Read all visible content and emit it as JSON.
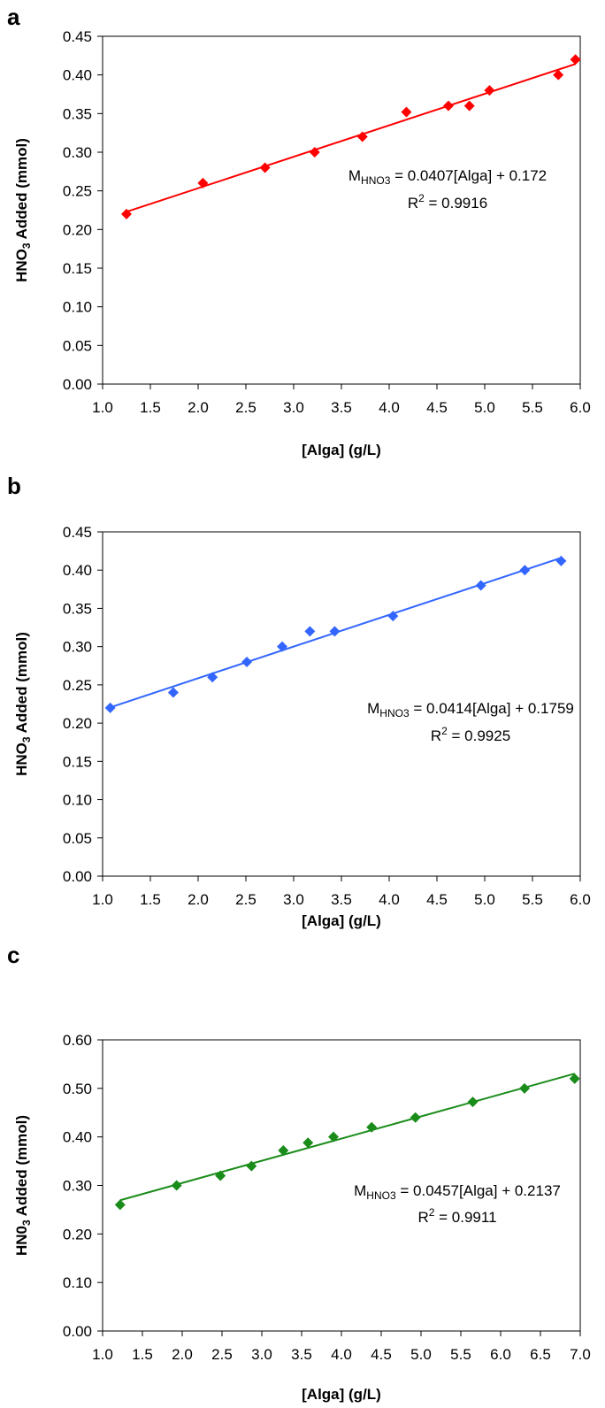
{
  "chart_data": [
    {
      "type": "scatter",
      "panel_label": "a",
      "xlabel": "[Alga] (g/L)",
      "ylabel_main": "HNO",
      "ylabel_sub": "3",
      "ylabel_rest": " Added (mmol)",
      "xlim": [
        1.0,
        6.0
      ],
      "ylim": [
        0.0,
        0.45
      ],
      "xticks": [
        "1.0",
        "1.5",
        "2.0",
        "2.5",
        "3.0",
        "3.5",
        "4.0",
        "4.5",
        "5.0",
        "5.5",
        "6.0"
      ],
      "yticks": [
        "0.00",
        "0.05",
        "0.10",
        "0.15",
        "0.20",
        "0.25",
        "0.30",
        "0.35",
        "0.40",
        "0.45"
      ],
      "color": "#ff0000",
      "series": [
        {
          "x": [
            1.25,
            2.05,
            2.7,
            3.22,
            3.72,
            4.18,
            4.62,
            4.84,
            5.05,
            5.77,
            5.95
          ],
          "y": [
            0.22,
            0.26,
            0.28,
            0.3,
            0.32,
            0.352,
            0.36,
            0.36,
            0.38,
            0.4,
            0.42
          ]
        }
      ],
      "trendline": {
        "slope": 0.0407,
        "intercept": 0.172,
        "x_range": [
          1.25,
          5.95
        ]
      },
      "equation_pre": "M",
      "equation_sub": "HNO3",
      "equation_post": " = 0.0407[Alga] + 0.172",
      "r2_pre": "R",
      "r2_sup": "2",
      "r2_post": " = 0.9916"
    },
    {
      "type": "scatter",
      "panel_label": "b",
      "xlabel": "[Alga] (g/L)",
      "ylabel_main": "HNO",
      "ylabel_sub": "3",
      "ylabel_rest": " Added (mmol)",
      "xlim": [
        1.0,
        6.0
      ],
      "ylim": [
        0.0,
        0.45
      ],
      "xticks": [
        "1.0",
        "1.5",
        "2.0",
        "2.5",
        "3.0",
        "3.5",
        "4.0",
        "4.5",
        "5.0",
        "5.5",
        "6.0"
      ],
      "yticks": [
        "0.00",
        "0.05",
        "0.10",
        "0.15",
        "0.20",
        "0.25",
        "0.30",
        "0.35",
        "0.40",
        "0.45"
      ],
      "color": "#3366ff",
      "series": [
        {
          "x": [
            1.08,
            1.74,
            2.15,
            2.51,
            2.88,
            3.17,
            3.43,
            4.04,
            4.96,
            5.42,
            5.8
          ],
          "y": [
            0.22,
            0.24,
            0.26,
            0.28,
            0.3,
            0.32,
            0.32,
            0.34,
            0.38,
            0.4,
            0.412
          ]
        }
      ],
      "trendline": {
        "slope": 0.0414,
        "intercept": 0.1759,
        "x_range": [
          1.08,
          5.8
        ]
      },
      "equation_pre": "M",
      "equation_sub": "HNO3",
      "equation_post": " = 0.0414[Alga] + 0.1759",
      "r2_pre": "R",
      "r2_sup": "2",
      "r2_post": " = 0.9925"
    },
    {
      "type": "scatter",
      "panel_label": "c",
      "xlabel": "[Alga] (g/L)",
      "ylabel_main": "HN0",
      "ylabel_sub": "3",
      "ylabel_rest": " Added (mmol)",
      "xlim": [
        1.0,
        7.0
      ],
      "ylim": [
        0.0,
        0.6
      ],
      "xticks": [
        "1.0",
        "1.5",
        "2.0",
        "2.5",
        "3.0",
        "3.5",
        "4.0",
        "4.5",
        "5.0",
        "5.5",
        "6.0",
        "6.5",
        "7.0"
      ],
      "yticks": [
        "0.00",
        "0.10",
        "0.20",
        "0.30",
        "0.40",
        "0.50",
        "0.60"
      ],
      "color": "#1a8c1a",
      "series": [
        {
          "x": [
            1.22,
            1.93,
            2.48,
            2.87,
            3.27,
            3.58,
            3.9,
            4.38,
            4.93,
            5.65,
            6.3,
            6.93
          ],
          "y": [
            0.26,
            0.3,
            0.32,
            0.34,
            0.372,
            0.388,
            0.4,
            0.42,
            0.44,
            0.472,
            0.5,
            0.52
          ]
        }
      ],
      "trendline": {
        "slope": 0.0457,
        "intercept": 0.2137,
        "x_range": [
          1.22,
          6.93
        ]
      },
      "equation_pre": "M",
      "equation_sub": "HNO3",
      "equation_post": " = 0.0457[Alga] + 0.2137",
      "r2_pre": "R",
      "r2_sup": "2",
      "r2_post": " = 0.9911"
    }
  ]
}
